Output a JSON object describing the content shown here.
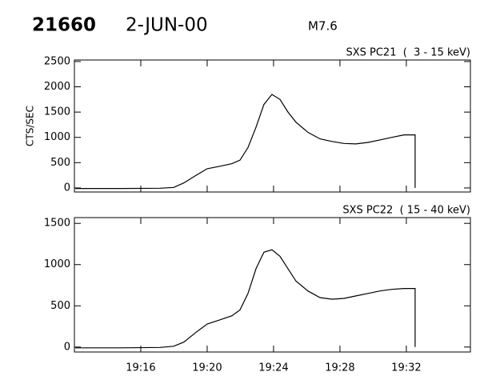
{
  "header": {
    "id": "21660",
    "date": "2-JUN-00",
    "class": "M7.6"
  },
  "chart_data": [
    {
      "type": "line",
      "title": "SXS PC21  (  3 - 15 keV)",
      "ylabel": "CTS/SEC",
      "x": [
        12.05,
        14.75,
        17.16,
        17.98,
        18.6,
        19.33,
        20.0,
        20.77,
        21.49,
        21.98,
        22.46,
        22.94,
        23.42,
        23.9,
        24.39,
        24.87,
        25.35,
        26.07,
        26.8,
        27.52,
        28.24,
        28.96,
        29.69,
        30.41,
        31.13,
        31.86,
        32.53,
        32.53
      ],
      "series": [
        {
          "color": "#000000",
          "values": [
            -10,
            -10,
            -5,
            10,
            100,
            250,
            380,
            430,
            480,
            550,
            800,
            1200,
            1650,
            1850,
            1750,
            1500,
            1300,
            1100,
            970,
            920,
            880,
            870,
            900,
            950,
            1000,
            1050,
            1050,
            0
          ]
        }
      ],
      "xlim": [
        12,
        35.86
      ],
      "xticks": [
        16,
        20,
        24,
        28,
        32
      ],
      "ylim": [
        -80,
        2530
      ],
      "yticks": [
        0,
        500,
        1000,
        1500,
        2000,
        2500
      ]
    },
    {
      "type": "line",
      "title": "SXS PC22  ( 15 - 40 keV)",
      "x": [
        12.05,
        14.75,
        17.16,
        17.98,
        18.6,
        19.33,
        20.0,
        20.77,
        21.49,
        21.98,
        22.46,
        22.94,
        23.42,
        23.9,
        24.39,
        24.87,
        25.35,
        26.07,
        26.8,
        27.52,
        28.24,
        28.96,
        29.69,
        30.41,
        31.13,
        31.86,
        32.53,
        32.53
      ],
      "series": [
        {
          "color": "#000000",
          "values": [
            -10,
            -10,
            -5,
            10,
            60,
            180,
            280,
            330,
            380,
            450,
            650,
            950,
            1150,
            1180,
            1100,
            950,
            800,
            680,
            600,
            580,
            590,
            620,
            650,
            680,
            700,
            710,
            710,
            0
          ]
        }
      ],
      "xlim": [
        12,
        35.86
      ],
      "xticks": [
        {
          "value": 16,
          "label": "19:16"
        },
        {
          "value": 20,
          "label": "19:20"
        },
        {
          "value": 24,
          "label": "19:24"
        },
        {
          "value": 28,
          "label": "19:28"
        },
        {
          "value": 32,
          "label": "19:32"
        }
      ],
      "ylim": [
        -60,
        1570
      ],
      "yticks": [
        0,
        500,
        1000,
        1500
      ]
    }
  ]
}
